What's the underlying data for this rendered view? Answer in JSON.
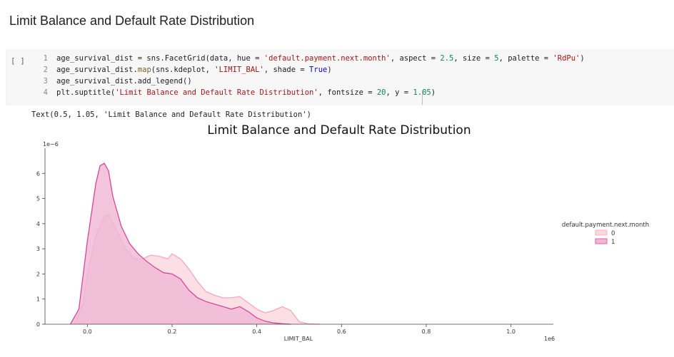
{
  "page": {
    "section_title": "Limit Balance and Default Rate Distribution"
  },
  "cell": {
    "run_button_label": "[ ]",
    "lines": [
      {
        "num": "1",
        "tokens": [
          {
            "t": "age_survival_dist = sns.FacetGrid(data, hue = ",
            "c": ""
          },
          {
            "t": "'default.payment.next.month'",
            "c": "str"
          },
          {
            "t": ", aspect = ",
            "c": ""
          },
          {
            "t": "2.5",
            "c": "num"
          },
          {
            "t": ", size = ",
            "c": ""
          },
          {
            "t": "5",
            "c": "num"
          },
          {
            "t": ", palette = ",
            "c": ""
          },
          {
            "t": "'RdPu'",
            "c": "str"
          },
          {
            "t": ")",
            "c": ""
          }
        ]
      },
      {
        "num": "2",
        "tokens": [
          {
            "t": "age_survival_dist.",
            "c": ""
          },
          {
            "t": "map",
            "c": "fn"
          },
          {
            "t": "(sns.kdeplot, ",
            "c": ""
          },
          {
            "t": "'LIMIT_BAL'",
            "c": "str"
          },
          {
            "t": ", shade = ",
            "c": ""
          },
          {
            "t": "True",
            "c": "kw"
          },
          {
            "t": ")",
            "c": ""
          }
        ]
      },
      {
        "num": "3",
        "tokens": [
          {
            "t": "age_survival_dist.add_legend()",
            "c": ""
          }
        ]
      },
      {
        "num": "4",
        "tokens": [
          {
            "t": "plt.suptitle(",
            "c": ""
          },
          {
            "t": "'Limit Balance and Default Rate Distribution'",
            "c": "str"
          },
          {
            "t": ", fontsize = ",
            "c": ""
          },
          {
            "t": "20",
            "c": "num"
          },
          {
            "t": ", y = ",
            "c": ""
          },
          {
            "t": "1.05",
            "c": "num"
          },
          {
            "t": ")",
            "c": ""
          }
        ]
      }
    ]
  },
  "output": {
    "text": "Text(0.5, 1.05, 'Limit Balance and Default Rate Distribution')"
  },
  "chart_data": {
    "type": "area",
    "title": "Limit Balance and Default Rate Distribution",
    "xlabel": "LIMIT_BAL",
    "x_offset_label": "1e6",
    "y_offset_label": "1e−6",
    "xlim": [
      -0.1,
      1.1
    ],
    "ylim": [
      0,
      7
    ],
    "x_ticks": [
      0.0,
      0.2,
      0.4,
      0.6,
      0.8,
      1.0
    ],
    "x_tick_labels": [
      "0.0",
      "0.2",
      "0.4",
      "0.6",
      "0.8",
      "1.0"
    ],
    "y_ticks": [
      0,
      1,
      2,
      3,
      4,
      5,
      6
    ],
    "y_tick_labels": [
      "0",
      "1",
      "2",
      "3",
      "4",
      "5",
      "6"
    ],
    "legend_title": "default.payment.next.month",
    "legend_position": "right",
    "series": [
      {
        "name": "0",
        "fill": "#fbd8e0",
        "stroke": "#f4a7c0",
        "x": [
          -0.03,
          -0.01,
          0.0,
          0.02,
          0.04,
          0.05,
          0.07,
          0.09,
          0.11,
          0.13,
          0.15,
          0.17,
          0.19,
          0.2,
          0.22,
          0.24,
          0.26,
          0.28,
          0.3,
          0.32,
          0.34,
          0.36,
          0.38,
          0.4,
          0.42,
          0.44,
          0.46,
          0.48,
          0.5,
          0.52,
          0.55
        ],
        "y": [
          0.0,
          0.8,
          2.0,
          3.5,
          4.3,
          4.35,
          3.7,
          3.0,
          2.6,
          2.6,
          2.75,
          2.7,
          2.6,
          2.8,
          2.6,
          2.2,
          1.7,
          1.3,
          1.15,
          1.05,
          1.05,
          1.1,
          0.85,
          0.6,
          0.45,
          0.55,
          0.7,
          0.55,
          0.1,
          0.02,
          0.0
        ]
      },
      {
        "name": "1",
        "fill": "#efb7d4",
        "stroke": "#d6479b",
        "x": [
          -0.04,
          -0.02,
          0.0,
          0.02,
          0.03,
          0.04,
          0.05,
          0.06,
          0.08,
          0.1,
          0.12,
          0.14,
          0.16,
          0.18,
          0.2,
          0.22,
          0.24,
          0.26,
          0.28,
          0.3,
          0.32,
          0.34,
          0.36,
          0.38,
          0.4,
          0.42,
          0.44,
          0.46,
          0.48
        ],
        "y": [
          0.0,
          0.6,
          3.3,
          5.6,
          6.3,
          6.4,
          6.1,
          5.1,
          3.9,
          3.2,
          2.8,
          2.5,
          2.25,
          2.05,
          2.0,
          1.8,
          1.35,
          1.05,
          0.9,
          0.8,
          0.7,
          0.6,
          0.7,
          0.5,
          0.25,
          0.12,
          0.05,
          0.02,
          0.0
        ]
      }
    ]
  }
}
